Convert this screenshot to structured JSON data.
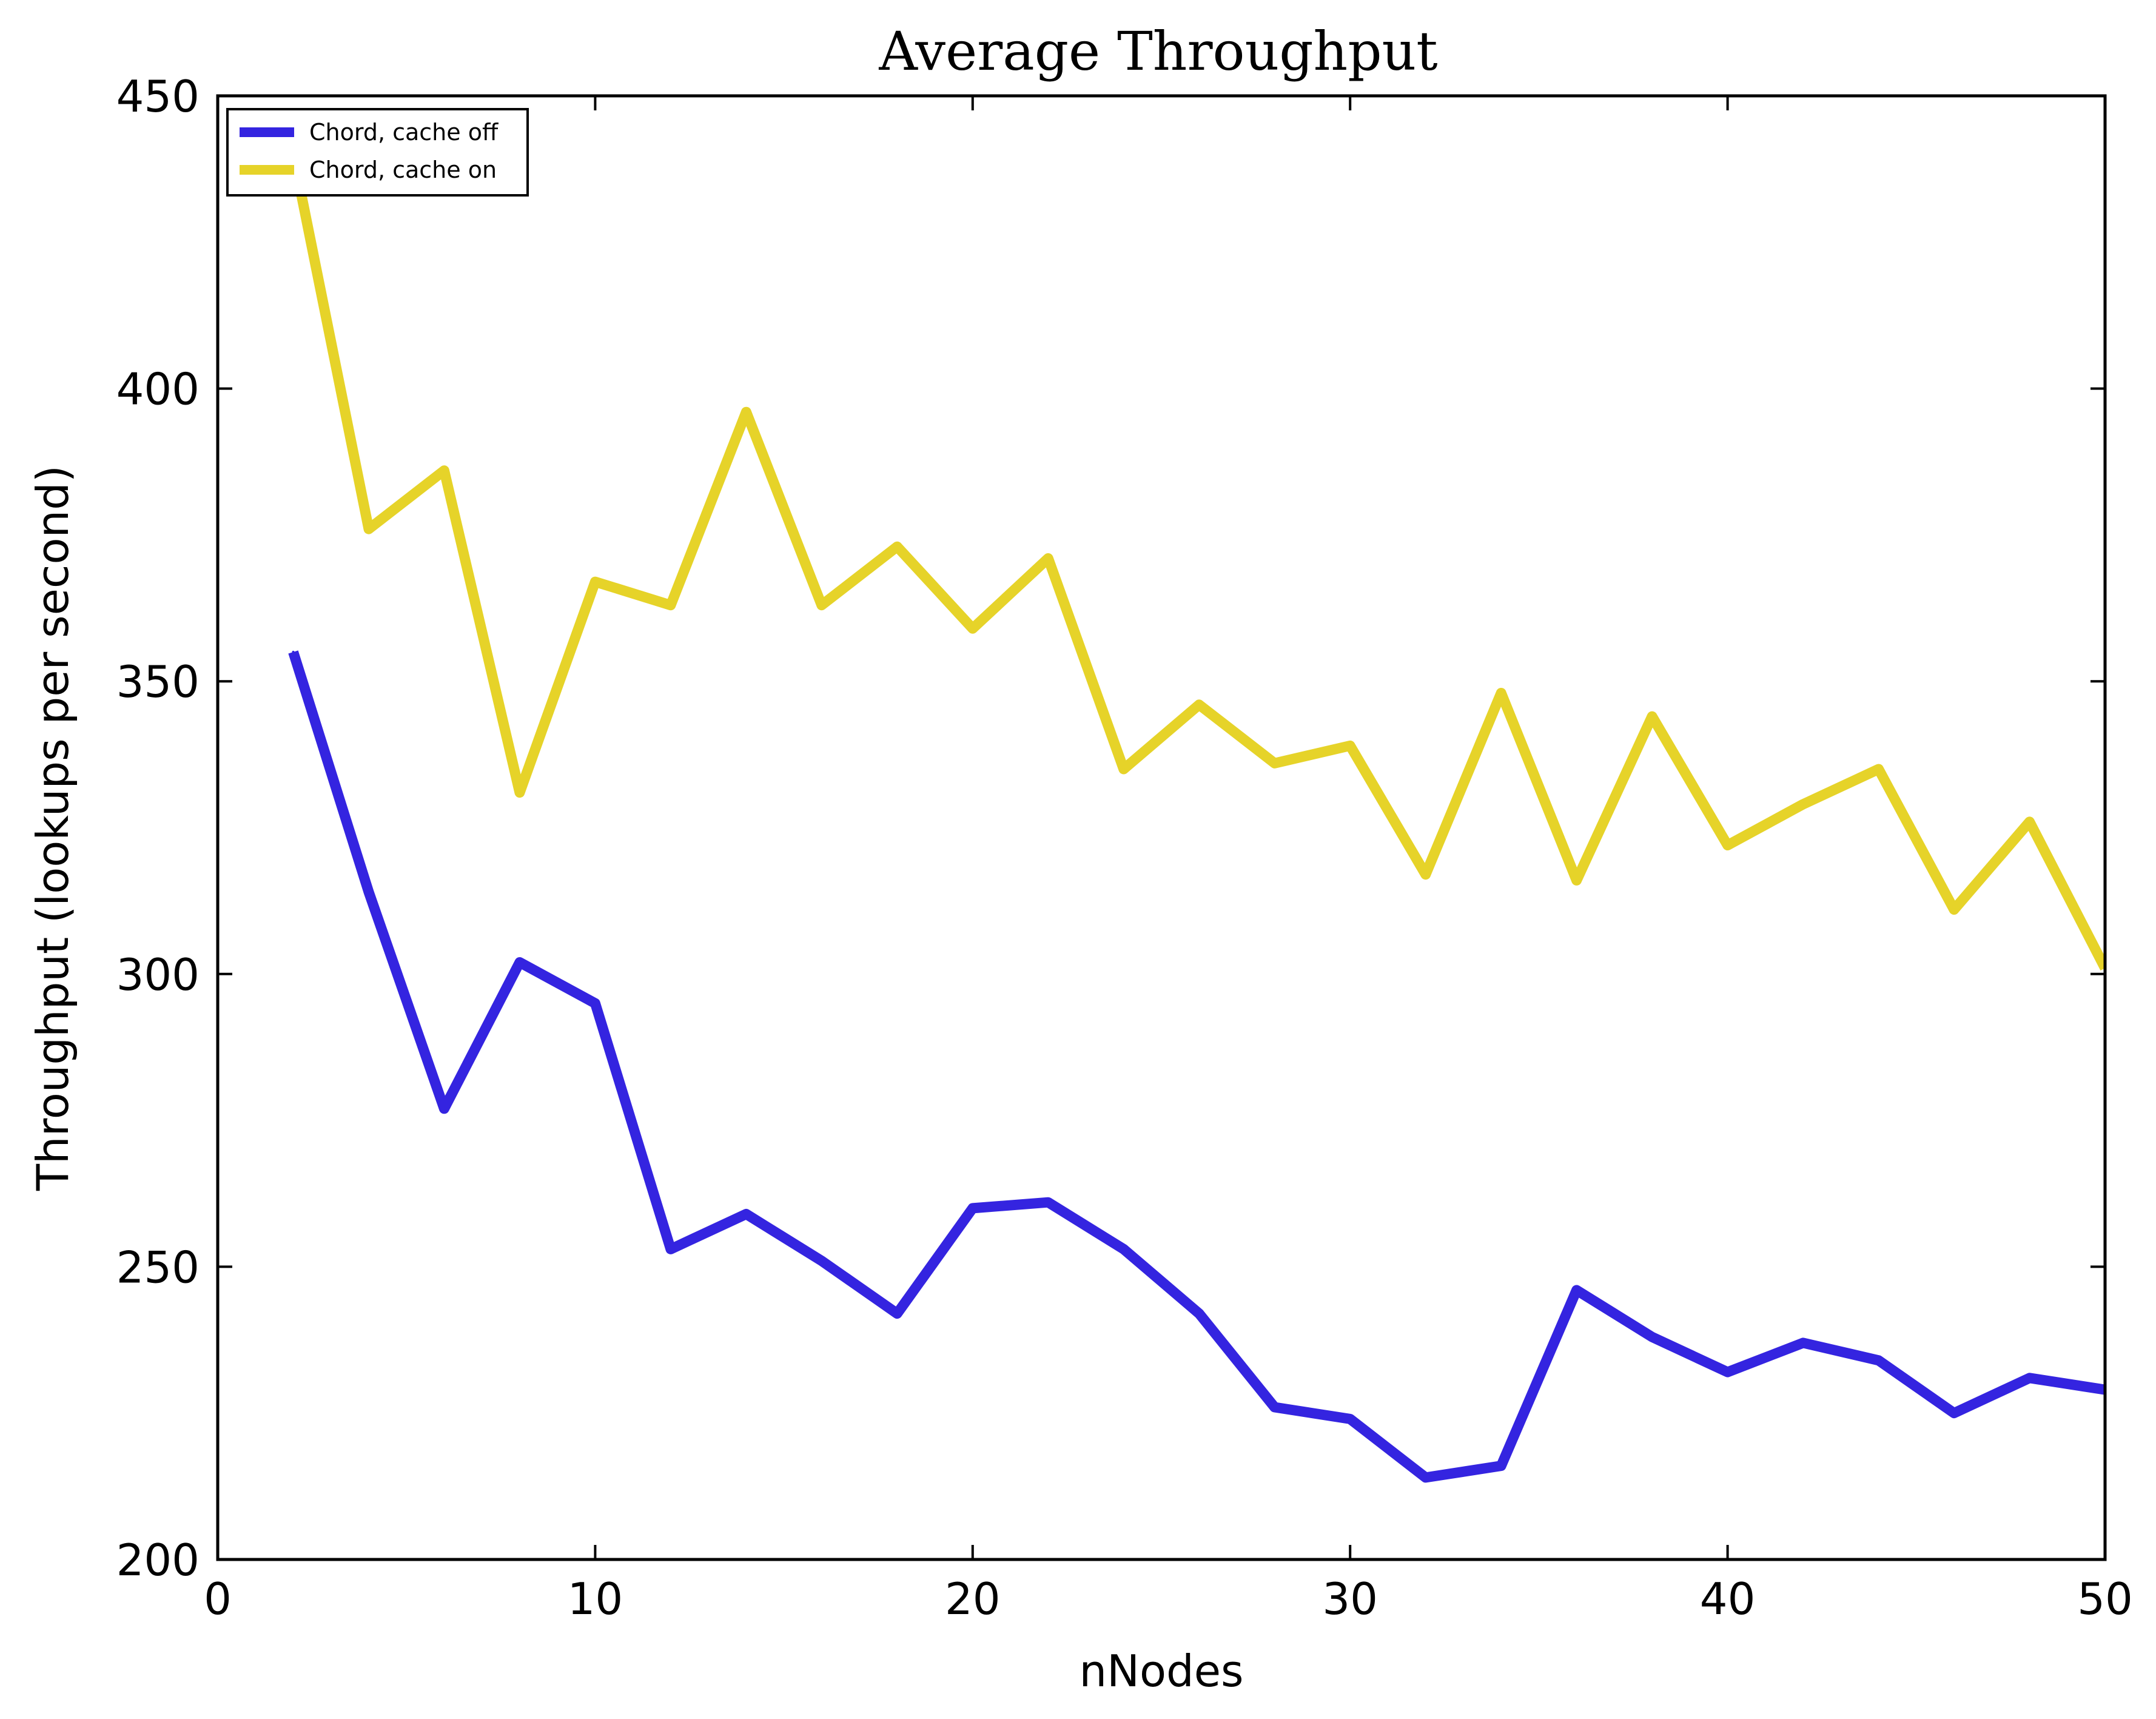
{
  "chart_data": {
    "type": "line",
    "title": "Average Throughput",
    "xlabel": "nNodes",
    "ylabel": "Throughput (lookups per second)",
    "xlim": [
      0,
      50
    ],
    "ylim": [
      200,
      450
    ],
    "xticks": [
      0,
      10,
      20,
      30,
      40,
      50
    ],
    "yticks": [
      200,
      250,
      300,
      350,
      400,
      450
    ],
    "legend_position": "top-left",
    "grid": false,
    "x": [
      2,
      4,
      6,
      8,
      10,
      12,
      14,
      16,
      18,
      20,
      22,
      24,
      26,
      28,
      30,
      32,
      34,
      36,
      38,
      40,
      42,
      44,
      46,
      48,
      50
    ],
    "series": [
      {
        "name": "Chord, cache off",
        "color": "#3424e0",
        "values": [
          355,
          314,
          277,
          302,
          295,
          253,
          259,
          251,
          242,
          260,
          261,
          253,
          242,
          226,
          224,
          214,
          216,
          246,
          238,
          232,
          237,
          234,
          225,
          231,
          229
        ]
      },
      {
        "name": "Chord, cache on",
        "color": "#e6d329",
        "values": [
          440,
          376,
          386,
          331,
          367,
          363,
          396,
          363,
          373,
          359,
          371,
          335,
          346,
          336,
          339,
          317,
          348,
          316,
          344,
          322,
          329,
          335,
          311,
          326,
          301
        ]
      }
    ]
  }
}
